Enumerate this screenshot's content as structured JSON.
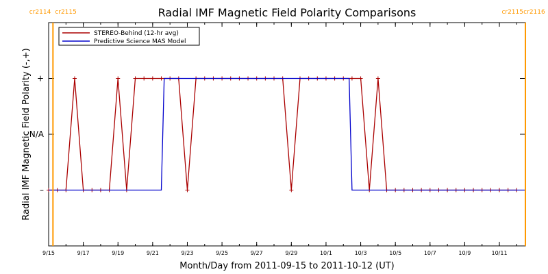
{
  "chart_data": {
    "type": "line",
    "title": "Radial IMF Magnetic Field Polarity Comparisons",
    "xlabel": "Month/Day from 2011-09-15 to 2011-10-12 (UT)",
    "ylabel": "Radial IMF Magnetic Field Polarity (-,+)",
    "xlim": [
      "2011-09-15T00:00",
      "2011-10-12T12:00"
    ],
    "ylim": [
      -2,
      2
    ],
    "y_ticks": [
      {
        "value": 1,
        "label": "+"
      },
      {
        "value": 0,
        "label": "N/A"
      },
      {
        "value": -1,
        "label": "–"
      }
    ],
    "x_ticks": [
      {
        "date": "2011-09-15",
        "label": "9/15"
      },
      {
        "date": "2011-09-17",
        "label": "9/17"
      },
      {
        "date": "2011-09-19",
        "label": "9/19"
      },
      {
        "date": "2011-09-21",
        "label": "9/21"
      },
      {
        "date": "2011-09-23",
        "label": "9/23"
      },
      {
        "date": "2011-09-25",
        "label": "9/25"
      },
      {
        "date": "2011-09-27",
        "label": "9/27"
      },
      {
        "date": "2011-09-29",
        "label": "9/29"
      },
      {
        "date": "2011-10-01",
        "label": "10/1"
      },
      {
        "date": "2011-10-03",
        "label": "10/3"
      },
      {
        "date": "2011-10-05",
        "label": "10/5"
      },
      {
        "date": "2011-10-07",
        "label": "10/7"
      },
      {
        "date": "2011-10-09",
        "label": "10/9"
      },
      {
        "date": "2011-10-11",
        "label": "10/11"
      }
    ],
    "carrington_markers": [
      {
        "date": "2011-09-15T06:00",
        "left_label": "cr2114",
        "right_label": "cr2115"
      },
      {
        "date": "2011-10-12T12:00",
        "left_label": "cr2115",
        "right_label": "cr2116"
      }
    ],
    "legend_position": "top-left",
    "series": [
      {
        "name": "STEREO-Behind (12-hr avg)",
        "color": "#aa0000",
        "markers": "plus",
        "points": [
          [
            "2011-09-15T00:00",
            -1
          ],
          [
            "2011-09-15T12:00",
            -1
          ],
          [
            "2011-09-16T00:00",
            -1
          ],
          [
            "2011-09-16T12:00",
            1
          ],
          [
            "2011-09-17T00:00",
            -1
          ],
          [
            "2011-09-17T12:00",
            -1
          ],
          [
            "2011-09-18T00:00",
            -1
          ],
          [
            "2011-09-18T12:00",
            -1
          ],
          [
            "2011-09-19T00:00",
            1
          ],
          [
            "2011-09-19T12:00",
            -1
          ],
          [
            "2011-09-20T00:00",
            1
          ],
          [
            "2011-09-20T12:00",
            1
          ],
          [
            "2011-09-21T00:00",
            1
          ],
          [
            "2011-09-21T12:00",
            1
          ],
          [
            "2011-09-22T00:00",
            1
          ],
          [
            "2011-09-22T12:00",
            1
          ],
          [
            "2011-09-23T00:00",
            -1
          ],
          [
            "2011-09-23T12:00",
            1
          ],
          [
            "2011-09-24T00:00",
            1
          ],
          [
            "2011-09-24T12:00",
            1
          ],
          [
            "2011-09-25T00:00",
            1
          ],
          [
            "2011-09-25T12:00",
            1
          ],
          [
            "2011-09-26T00:00",
            1
          ],
          [
            "2011-09-26T12:00",
            1
          ],
          [
            "2011-09-27T00:00",
            1
          ],
          [
            "2011-09-27T12:00",
            1
          ],
          [
            "2011-09-28T00:00",
            1
          ],
          [
            "2011-09-28T12:00",
            1
          ],
          [
            "2011-09-29T00:00",
            -1
          ],
          [
            "2011-09-29T12:00",
            1
          ],
          [
            "2011-09-30T00:00",
            1
          ],
          [
            "2011-09-30T12:00",
            1
          ],
          [
            "2011-10-01T00:00",
            1
          ],
          [
            "2011-10-01T12:00",
            1
          ],
          [
            "2011-10-02T00:00",
            1
          ],
          [
            "2011-10-02T12:00",
            1
          ],
          [
            "2011-10-03T00:00",
            1
          ],
          [
            "2011-10-03T12:00",
            -1
          ],
          [
            "2011-10-04T00:00",
            1
          ],
          [
            "2011-10-04T12:00",
            -1
          ],
          [
            "2011-10-05T00:00",
            -1
          ],
          [
            "2011-10-05T12:00",
            -1
          ],
          [
            "2011-10-06T00:00",
            -1
          ],
          [
            "2011-10-06T12:00",
            -1
          ],
          [
            "2011-10-07T00:00",
            -1
          ],
          [
            "2011-10-07T12:00",
            -1
          ],
          [
            "2011-10-08T00:00",
            -1
          ],
          [
            "2011-10-08T12:00",
            -1
          ],
          [
            "2011-10-09T00:00",
            -1
          ],
          [
            "2011-10-09T12:00",
            -1
          ],
          [
            "2011-10-10T00:00",
            -1
          ],
          [
            "2011-10-10T12:00",
            -1
          ],
          [
            "2011-10-11T00:00",
            -1
          ],
          [
            "2011-10-11T12:00",
            -1
          ],
          [
            "2011-10-12T00:00",
            -1
          ]
        ]
      },
      {
        "name": "Predictive Science MAS Model",
        "color": "#0000cc",
        "markers": "none",
        "points": [
          [
            "2011-09-15T00:00",
            -1
          ],
          [
            "2011-09-21T12:00",
            -1
          ],
          [
            "2011-09-21T16:00",
            1
          ],
          [
            "2011-10-02T08:00",
            1
          ],
          [
            "2011-10-02T12:00",
            -1
          ],
          [
            "2011-10-12T12:00",
            -1
          ]
        ]
      }
    ]
  }
}
